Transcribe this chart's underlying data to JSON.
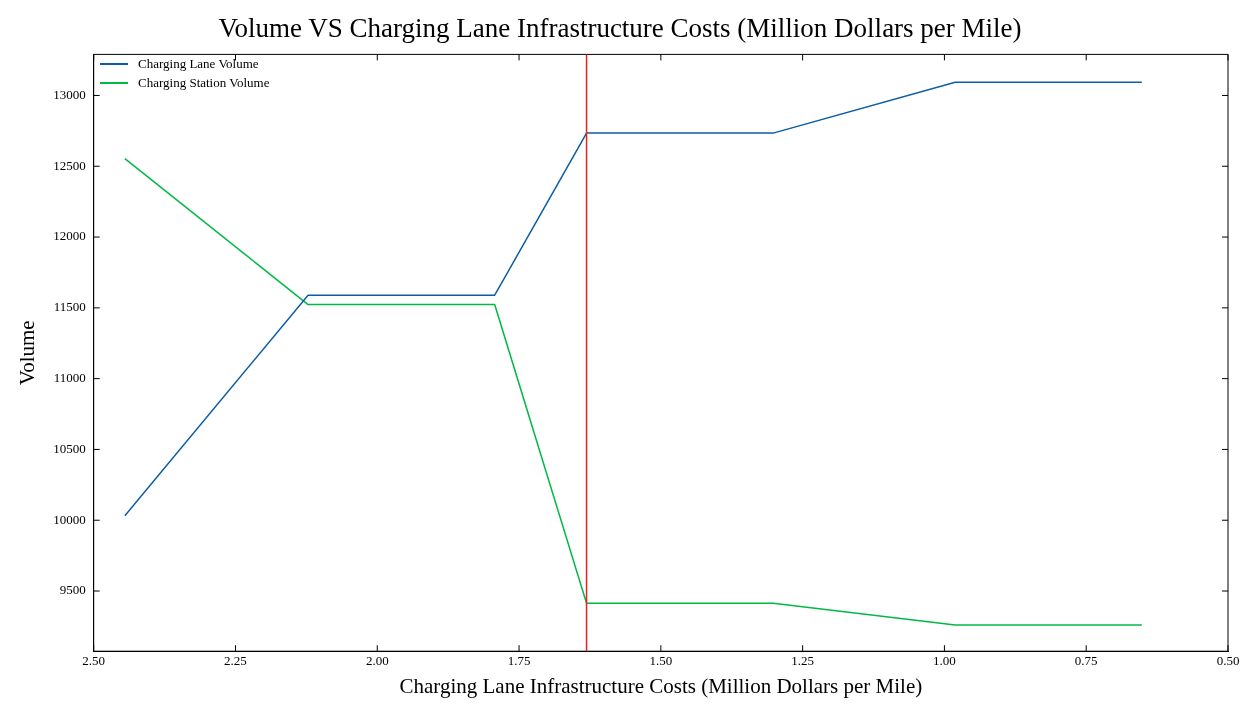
{
  "chart_data": {
    "type": "line",
    "title": "Volume VS Charging Lane Infrastructure Costs (Million Dollars per Mile)",
    "xlabel": "Charging Lane Infrastructure Costs (Million Dollars per Mile)",
    "ylabel": "Volume",
    "x": [
      2.445,
      2.122,
      1.793,
      1.631,
      1.302,
      0.981,
      0.652
    ],
    "series": [
      {
        "name": "Charging Lane Volume",
        "color": "#0c5da5",
        "values": [
          10032,
          11589,
          11589,
          12734,
          12734,
          13093,
          13093
        ]
      },
      {
        "name": "Charging Station Volume",
        "color": "#00b945",
        "values": [
          12554,
          11523,
          11523,
          9413,
          9413,
          9260,
          9260
        ]
      }
    ],
    "xlim": [
      2.5,
      0.5
    ],
    "xticks": [
      {
        "value": 2.5,
        "label": "2.50"
      },
      2.25,
      {
        "value": 2.0,
        "label": "2.00"
      },
      1.75,
      {
        "value": 1.5,
        "label": "1.50"
      },
      1.25,
      {
        "value": 1.0,
        "label": "1.00"
      },
      0.75,
      {
        "value": 0.5,
        "label": "0.50"
      }
    ],
    "ylim": [
      9075,
      13290
    ],
    "yticks": [
      9500,
      10000,
      10500,
      11000,
      11500,
      12000,
      12500,
      13000
    ],
    "ref_lines": [
      {
        "axis": "x",
        "value": 1.631,
        "color": "#e8211c"
      }
    ],
    "grid": false,
    "legend": "top left",
    "marker": "none",
    "line_style": "solid"
  }
}
